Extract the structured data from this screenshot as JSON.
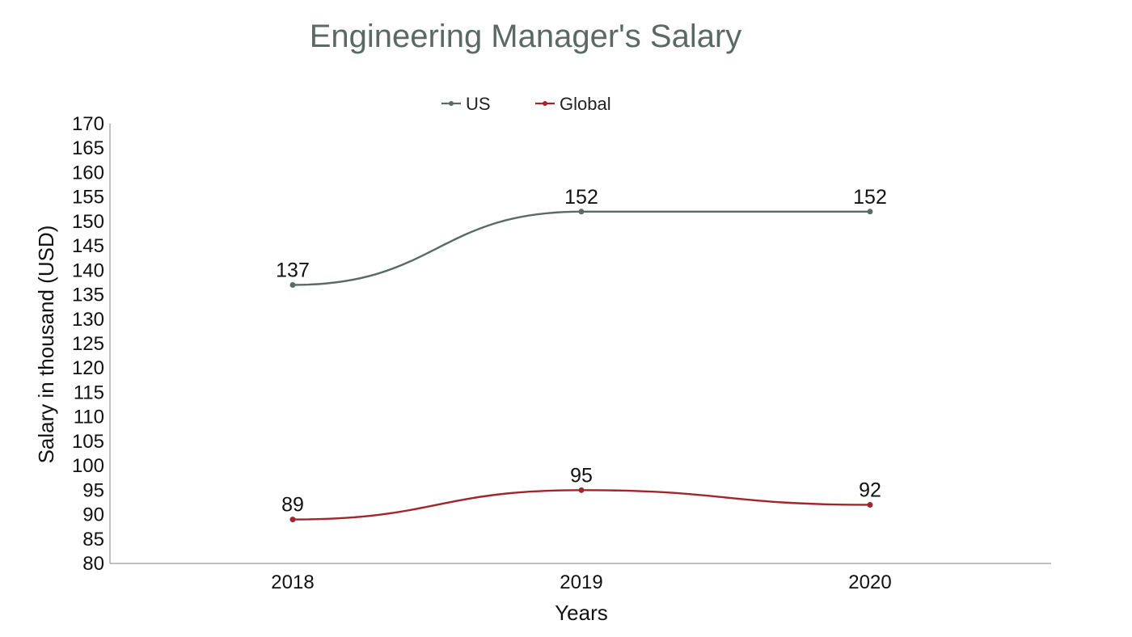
{
  "chart_data": {
    "type": "line",
    "title": "Engineering Manager's Salary",
    "xlabel": "Years",
    "ylabel": "Salary in thousand (USD)",
    "categories": [
      "2018",
      "2019",
      "2020"
    ],
    "ylim": [
      80,
      170
    ],
    "yticks": [
      80,
      85,
      90,
      95,
      100,
      105,
      110,
      115,
      120,
      125,
      130,
      135,
      140,
      145,
      150,
      155,
      160,
      165,
      170
    ],
    "legend_position": "top-center",
    "grid": false,
    "smooth": true,
    "series": [
      {
        "name": "US",
        "values": [
          137,
          152,
          152
        ],
        "color": "#5a6b66"
      },
      {
        "name": "Global",
        "values": [
          89,
          95,
          92
        ],
        "color": "#a1262c"
      }
    ]
  }
}
